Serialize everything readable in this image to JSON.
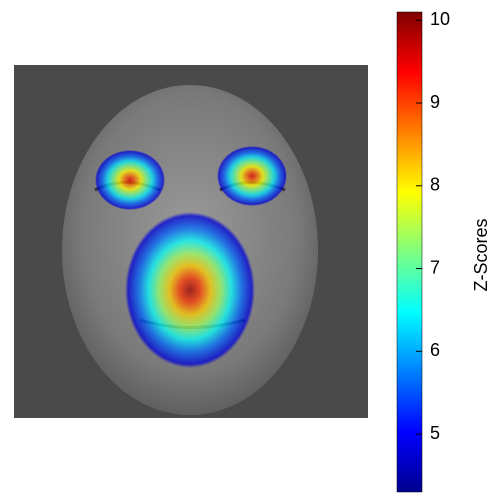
{
  "chart_data": {
    "type": "heatmap",
    "colorbar_label": "Z-Scores",
    "clim": [
      4.3,
      10.1
    ],
    "cticks": [
      5,
      6,
      7,
      8,
      9,
      10
    ],
    "colormap": "jet",
    "values": [
      9.5,
      9.5,
      9.9
    ]
  }
}
